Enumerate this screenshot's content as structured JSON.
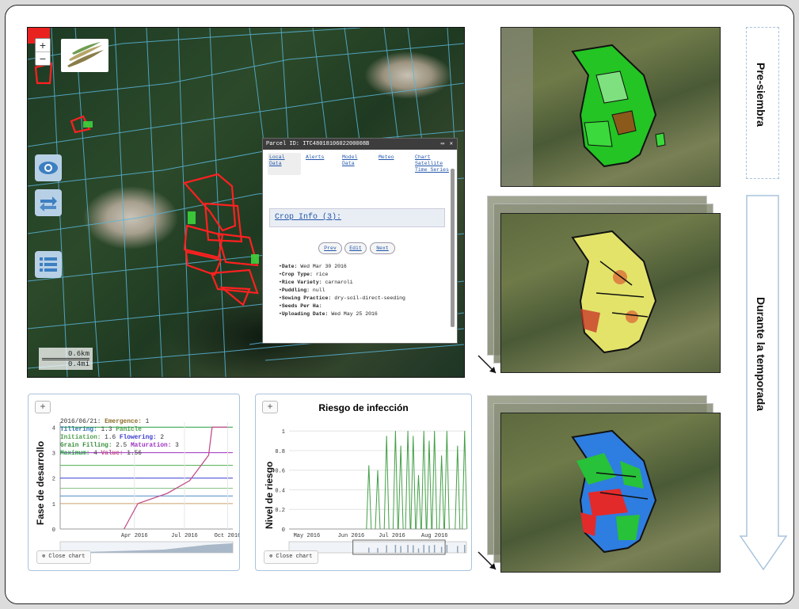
{
  "map": {
    "zoom_in": "+",
    "zoom_out": "−",
    "scale_top": "0.6km",
    "scale_bottom": "0.4mi",
    "side_buttons": [
      "eye-icon",
      "swap-icon",
      "list-icon"
    ]
  },
  "popup": {
    "title": "Parcel ID: ITC4801810602200008B",
    "maximize": "▭",
    "close": "✕",
    "tabs": [
      {
        "label": "Local Data"
      },
      {
        "label": "Alerts"
      },
      {
        "label": "Model Data"
      },
      {
        "label": "Meteo"
      },
      {
        "label": "Chart Satellite Time Series"
      }
    ],
    "section_title": "Crop Info (3):",
    "nav": {
      "prev": "Prev",
      "edit": "Edit",
      "next": "Next"
    },
    "fields": [
      {
        "label": "Date:",
        "value": "Wed Mar 30 2016"
      },
      {
        "label": "Crop Type:",
        "value": "rice"
      },
      {
        "label": "Rice Variety:",
        "value": "carnaroli"
      },
      {
        "label": "Puddling:",
        "value": "null"
      },
      {
        "label": "Sowing Practice:",
        "value": "dry-soil-direct-seeding"
      },
      {
        "label": "Seeds Per Ha:",
        "value": ""
      },
      {
        "label": "Uploading Date:",
        "value": "Wed May 25 2016"
      }
    ]
  },
  "chart1_ui": {
    "plus": "+",
    "close": "⊗ Close chart",
    "legend": {
      "line1_date": "2016/06/21:",
      "line1_k": "Emergence:",
      "line1_v": "1",
      "line2_k": "Tillering:",
      "line2_v": "1.3",
      "line2_k2": "Panicle",
      "line3_k": "Initiation:",
      "line3_v": "1.6",
      "line3_k2": "Flowering:",
      "line3_v2": "2",
      "line4_k": "Grain Filling:",
      "line4_v": "2.5",
      "line4_k2": "Maturation:",
      "line4_v2": "3",
      "line5_k": "Maximum:",
      "line5_v": "4",
      "line5_k2": "Value:",
      "line5_v2": "1.56"
    }
  },
  "chart2_ui": {
    "plus": "+",
    "close": "⊗ Close chart"
  },
  "labels": {
    "pre": "Pre-siembra",
    "durante": "Durante la temporada"
  },
  "chart_data": [
    {
      "type": "line",
      "title": "",
      "ylabel": "Fase de desarrollo",
      "xlabel": "",
      "x_ticks": [
        "Apr 2016",
        "Jul 2016",
        "Oct 2016"
      ],
      "y_ticks": [
        "0",
        "1",
        "2",
        "3",
        "4"
      ],
      "ylim": [
        0,
        4.2
      ],
      "thresholds": [
        {
          "name": "Emergence",
          "value": 1,
          "color": "#c9a06a"
        },
        {
          "name": "Tillering",
          "value": 1.3,
          "color": "#4c8ac8"
        },
        {
          "name": "Panicle Initiation",
          "value": 1.6,
          "color": "#7fbf7f"
        },
        {
          "name": "Flowering",
          "value": 2,
          "color": "#3a3ad0"
        },
        {
          "name": "Grain Filling",
          "value": 2.5,
          "color": "#4caf50"
        },
        {
          "name": "Maturation",
          "value": 3,
          "color": "#9b30c0"
        },
        {
          "name": "Maximum",
          "value": 4,
          "color": "#27a046"
        }
      ],
      "series": [
        {
          "values_x": [
            0.37,
            0.45,
            0.62,
            0.75,
            0.86,
            0.88,
            0.97
          ],
          "values_y": [
            0,
            1.0,
            1.4,
            1.9,
            2.9,
            4.0,
            4.0
          ],
          "color": "#c0508a"
        }
      ]
    },
    {
      "type": "line",
      "title": "Riesgo de infección",
      "ylabel": "Nivel de riesgo",
      "xlabel": "",
      "x_ticks": [
        "May 2016",
        "Jun 2016",
        "Jul 2016",
        "Aug 2016"
      ],
      "y_ticks": [
        "0",
        "0.2",
        "0.4",
        "0.6",
        "0.8",
        "1"
      ],
      "ylim": [
        0,
        1.05
      ],
      "series": [
        {
          "color": "#43a047",
          "spikes": [
            [
              0.45,
              0.65
            ],
            [
              0.5,
              0.6
            ],
            [
              0.55,
              0.95
            ],
            [
              0.6,
              1.0
            ],
            [
              0.63,
              0.85
            ],
            [
              0.67,
              1.0
            ],
            [
              0.7,
              0.95
            ],
            [
              0.73,
              0.55
            ],
            [
              0.76,
              1.0
            ],
            [
              0.79,
              0.9
            ],
            [
              0.82,
              1.0
            ],
            [
              0.86,
              0.75
            ],
            [
              0.89,
              1.0
            ],
            [
              0.95,
              0.85
            ],
            [
              0.99,
              1.0
            ]
          ]
        }
      ]
    }
  ]
}
